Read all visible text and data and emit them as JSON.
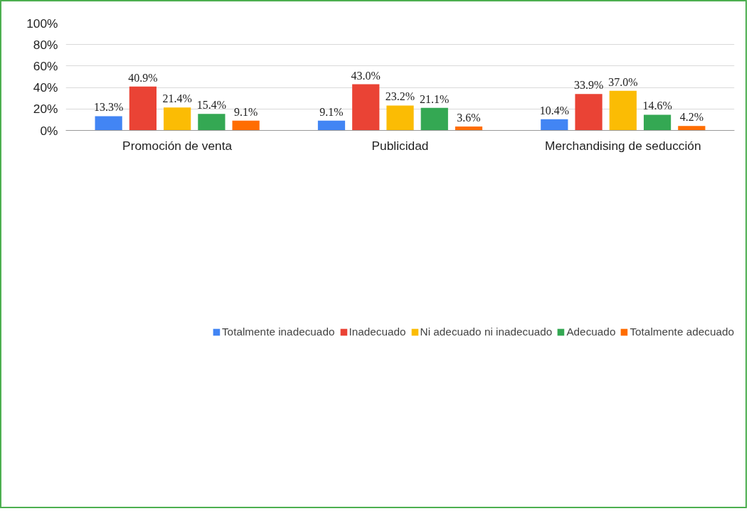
{
  "chart_data": {
    "type": "bar",
    "categories": [
      "Promoción de venta",
      "Publicidad",
      "Merchandising de seducción"
    ],
    "series": [
      {
        "name": "Totalmente inadecuado",
        "color": "#4285f4",
        "values": [
          13.3,
          9.1,
          10.4
        ],
        "value_labels": [
          "13.3%",
          "9.1%",
          "10.4%"
        ]
      },
      {
        "name": "Inadecuado",
        "color": "#ea4335",
        "values": [
          40.9,
          43.0,
          33.9
        ],
        "value_labels": [
          "40.9%",
          "43.0%",
          "33.9%"
        ]
      },
      {
        "name": "Ni adecuado ni inadecuado",
        "color": "#fbbc04",
        "values": [
          21.4,
          23.2,
          37.0
        ],
        "value_labels": [
          "21.4%",
          "23.2%",
          "37.0%"
        ]
      },
      {
        "name": "Adecuado",
        "color": "#34a853",
        "values": [
          15.4,
          21.1,
          14.6
        ],
        "value_labels": [
          "15.4%",
          "21.1%",
          "14.6%"
        ]
      },
      {
        "name": "Totalmente adecuado",
        "color": "#ff6d01",
        "values": [
          9.1,
          3.6,
          4.2
        ],
        "value_labels": [
          "9.1%",
          "3.6%",
          "4.2%"
        ]
      }
    ],
    "ylim": [
      0,
      100
    ],
    "yticks": [
      {
        "value": 0,
        "label": "0%"
      },
      {
        "value": 20,
        "label": "20%"
      },
      {
        "value": 40,
        "label": "40%"
      },
      {
        "value": 60,
        "label": "60%"
      },
      {
        "value": 80,
        "label": "80%"
      },
      {
        "value": 100,
        "label": "100%"
      }
    ],
    "grid": "y",
    "legend": "bottom"
  }
}
